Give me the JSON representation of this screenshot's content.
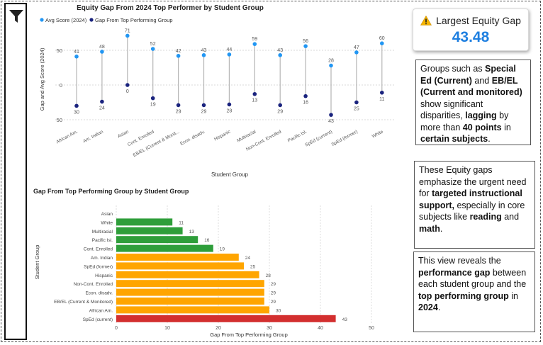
{
  "kpi": {
    "title": "Largest Equity Gap",
    "value": "43.48",
    "icon": "warning-icon",
    "value_color": "#1e7fe0"
  },
  "notes": [
    [
      {
        "t": "Groups such as "
      },
      {
        "t": "Special Ed (Current)",
        "b": true
      },
      {
        "t": " and "
      },
      {
        "t": "EB/EL (Current and monitored)",
        "b": true
      },
      {
        "t": " show significant disparities, "
      },
      {
        "t": "lagging",
        "b": true
      },
      {
        "t": " by more than "
      },
      {
        "t": "40 points",
        "b": true
      },
      {
        "t": " in "
      },
      {
        "t": "certain subjects",
        "b": true
      },
      {
        "t": "."
      }
    ],
    [
      {
        "t": "These Equity gaps emphasize the urgent need for "
      },
      {
        "t": "targeted instructional support,",
        "b": true
      },
      {
        "t": " especially in core subjects like "
      },
      {
        "t": "reading",
        "b": true
      },
      {
        "t": " and "
      },
      {
        "t": "math",
        "b": true
      },
      {
        "t": "."
      }
    ],
    [
      {
        "t": "This view reveals the "
      },
      {
        "t": "performance gap",
        "b": true
      },
      {
        "t": " between each student group and the "
      },
      {
        "t": "top performing group",
        "b": true
      },
      {
        "t": " in "
      },
      {
        "t": "2024",
        "b": true
      },
      {
        "t": "."
      }
    ]
  ],
  "chart_data": [
    {
      "type": "scatter",
      "title": "Equity Gap From 2024 Top Performer by Student Group",
      "xlabel": "Student Group",
      "ylabel": "Gap and Avg Score (2024)",
      "ylim": [
        -50,
        70
      ],
      "yticks": [
        50,
        0,
        -50
      ],
      "ytick_labels": [
        "50",
        "0",
        "50"
      ],
      "grid": true,
      "legend_position": "top-left",
      "categories": [
        "African Am.",
        "Am. Indian",
        "Asian",
        "Cont. Enrolled",
        "EB/EL (Current & Monit...",
        "Econ. disadv.",
        "Hispanic",
        "Multiracial",
        "Non-Cont. Enrolled",
        "Pacific Isl.",
        "SpEd (current)",
        "SpEd (former)",
        "White"
      ],
      "series": [
        {
          "name": "Avg Score (2024)",
          "color": "#2196f3",
          "values": [
            41,
            48,
            71,
            52,
            42,
            43,
            44,
            59,
            43,
            56,
            28,
            47,
            60
          ]
        },
        {
          "name": "Gap From Top Performing Group",
          "color": "#1a237e",
          "values": [
            -30,
            -24,
            0,
            -19,
            -29,
            -29,
            -28,
            -13,
            -29,
            -16,
            -43,
            -25,
            -11
          ],
          "labels": [
            "30",
            "24",
            "0",
            "19",
            "29",
            "29",
            "28",
            "13",
            "29",
            "16",
            "43",
            "25",
            "11"
          ]
        }
      ]
    },
    {
      "type": "bar",
      "orientation": "horizontal",
      "title": "Gap From Top Performing Group by Student Group",
      "xlabel": "Gap From Top Performing Group",
      "ylabel": "Student Group",
      "xlim": [
        0,
        50
      ],
      "xticks": [
        0,
        10,
        20,
        30,
        40,
        50
      ],
      "grid": true,
      "categories": [
        "Asian",
        "White",
        "Multiracial",
        "Pacific Isl.",
        "Cont. Enrolled",
        "Am. Indian",
        "SpEd (former)",
        "Hispanic",
        "Non-Cont. Enrolled",
        "Econ. disadv.",
        "EB/EL (Current & Monitored)",
        "African Am.",
        "SpEd (current)"
      ],
      "values": [
        0,
        11,
        13,
        16,
        19,
        24,
        25,
        28,
        29,
        29,
        29,
        30,
        43
      ],
      "value_labels": [
        "",
        "11",
        "13",
        "16",
        "19",
        "24",
        "25",
        "28",
        "29",
        "29",
        "29",
        "30",
        "43"
      ],
      "colors": [
        "#2e9e3a",
        "#2e9e3a",
        "#2e9e3a",
        "#2e9e3a",
        "#2e9e3a",
        "#ffa500",
        "#ffa500",
        "#ffa500",
        "#ffa500",
        "#ffa500",
        "#ffa500",
        "#ffa500",
        "#d32f2f"
      ]
    }
  ]
}
